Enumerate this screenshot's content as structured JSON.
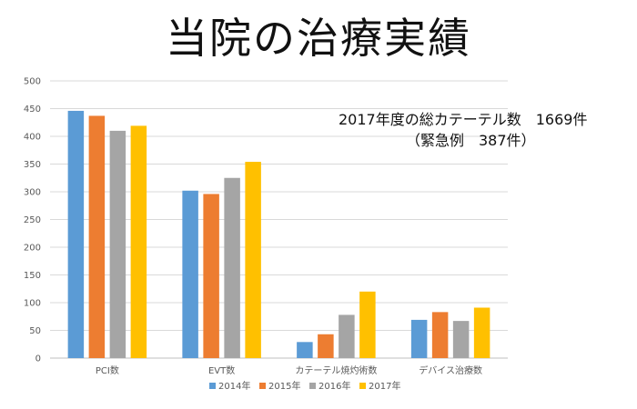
{
  "page": {
    "title": "当院の治療実績",
    "annotation_line1": "2017年度の総カテーテル数　1669件",
    "annotation_line2": "（緊急例　387件）"
  },
  "chart_data": {
    "type": "bar",
    "title": "",
    "xlabel": "",
    "ylabel": "",
    "ylim": [
      0,
      500
    ],
    "yticks": [
      0,
      50,
      100,
      150,
      200,
      250,
      300,
      350,
      400,
      450,
      500
    ],
    "grid": true,
    "legend_position": "bottom",
    "categories": [
      "PCI数",
      "EVT数",
      "カテーテル焼灼術数",
      "デバイス治療数"
    ],
    "series": [
      {
        "name": "2014年",
        "color": "#5B9BD5",
        "values": [
          446,
          302,
          29,
          69
        ]
      },
      {
        "name": "2015年",
        "color": "#ED7D31",
        "values": [
          437,
          296,
          43,
          83
        ]
      },
      {
        "name": "2016年",
        "color": "#A5A5A5",
        "values": [
          410,
          325,
          78,
          67
        ]
      },
      {
        "name": "2017年",
        "color": "#FFC000",
        "values": [
          419,
          354,
          120,
          91
        ]
      }
    ]
  }
}
